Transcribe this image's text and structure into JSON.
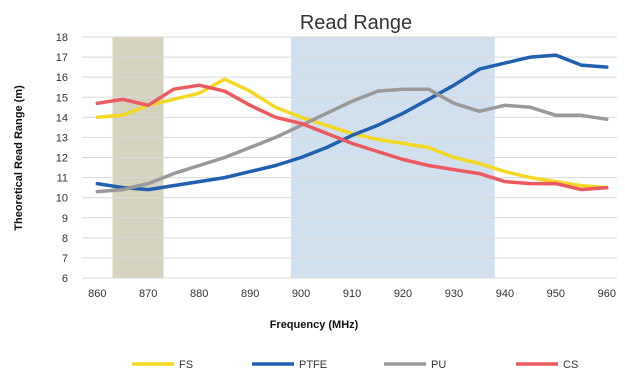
{
  "chart_data": {
    "type": "line",
    "title": "Read Range",
    "xlabel": "Frequency (MHz)",
    "ylabel": "Theoretical Read Range (m)",
    "xlim": [
      857,
      962
    ],
    "ylim": [
      6,
      18
    ],
    "x_ticks": [
      860,
      870,
      880,
      890,
      900,
      910,
      920,
      930,
      940,
      950,
      960
    ],
    "y_ticks": [
      6,
      7,
      8,
      9,
      10,
      11,
      12,
      13,
      14,
      15,
      16,
      17,
      18
    ],
    "grid": true,
    "legend_position": "bottom",
    "shaded_regions": [
      {
        "x_start": 863,
        "x_end": 873,
        "color": "#d5d2bd"
      },
      {
        "x_start": 898,
        "x_end": 938,
        "color": "#d0e0ee"
      }
    ],
    "series": [
      {
        "name": "FS",
        "color": "#f5d824",
        "x": [
          860,
          865,
          870,
          875,
          880,
          885,
          890,
          895,
          900,
          905,
          910,
          915,
          920,
          925,
          930,
          935,
          940,
          945,
          950,
          955,
          960
        ],
        "y": [
          14.0,
          14.1,
          14.6,
          14.9,
          15.2,
          15.9,
          15.3,
          14.5,
          14.0,
          13.6,
          13.2,
          12.9,
          12.7,
          12.5,
          12.0,
          11.7,
          11.3,
          11.0,
          10.8,
          10.6,
          10.5
        ]
      },
      {
        "name": "PTFE",
        "color": "#2060b0",
        "x": [
          860,
          865,
          870,
          875,
          880,
          885,
          890,
          895,
          900,
          905,
          910,
          915,
          920,
          925,
          930,
          935,
          940,
          945,
          950,
          955,
          960
        ],
        "y": [
          10.7,
          10.5,
          10.4,
          10.6,
          10.8,
          11.0,
          11.3,
          11.6,
          12.0,
          12.5,
          13.1,
          13.6,
          14.2,
          14.9,
          15.6,
          16.4,
          16.7,
          17.0,
          17.1,
          16.6,
          16.5
        ]
      },
      {
        "name": "PU",
        "color": "#999999",
        "x": [
          860,
          865,
          870,
          875,
          880,
          885,
          890,
          895,
          900,
          905,
          910,
          915,
          920,
          925,
          930,
          935,
          940,
          945,
          950,
          955,
          960
        ],
        "y": [
          10.3,
          10.4,
          10.7,
          11.2,
          11.6,
          12.0,
          12.5,
          13.0,
          13.6,
          14.2,
          14.8,
          15.3,
          15.4,
          15.4,
          14.7,
          14.3,
          14.6,
          14.5,
          14.1,
          14.1,
          13.9
        ]
      },
      {
        "name": "CS",
        "color": "#ec5a60",
        "x": [
          860,
          865,
          870,
          875,
          880,
          885,
          890,
          895,
          900,
          905,
          910,
          915,
          920,
          925,
          930,
          935,
          940,
          945,
          950,
          955,
          960
        ],
        "y": [
          14.7,
          14.9,
          14.6,
          15.4,
          15.6,
          15.3,
          14.6,
          14.0,
          13.7,
          13.2,
          12.7,
          12.3,
          11.9,
          11.6,
          11.4,
          11.2,
          10.8,
          10.7,
          10.7,
          10.4,
          10.5
        ]
      }
    ]
  }
}
